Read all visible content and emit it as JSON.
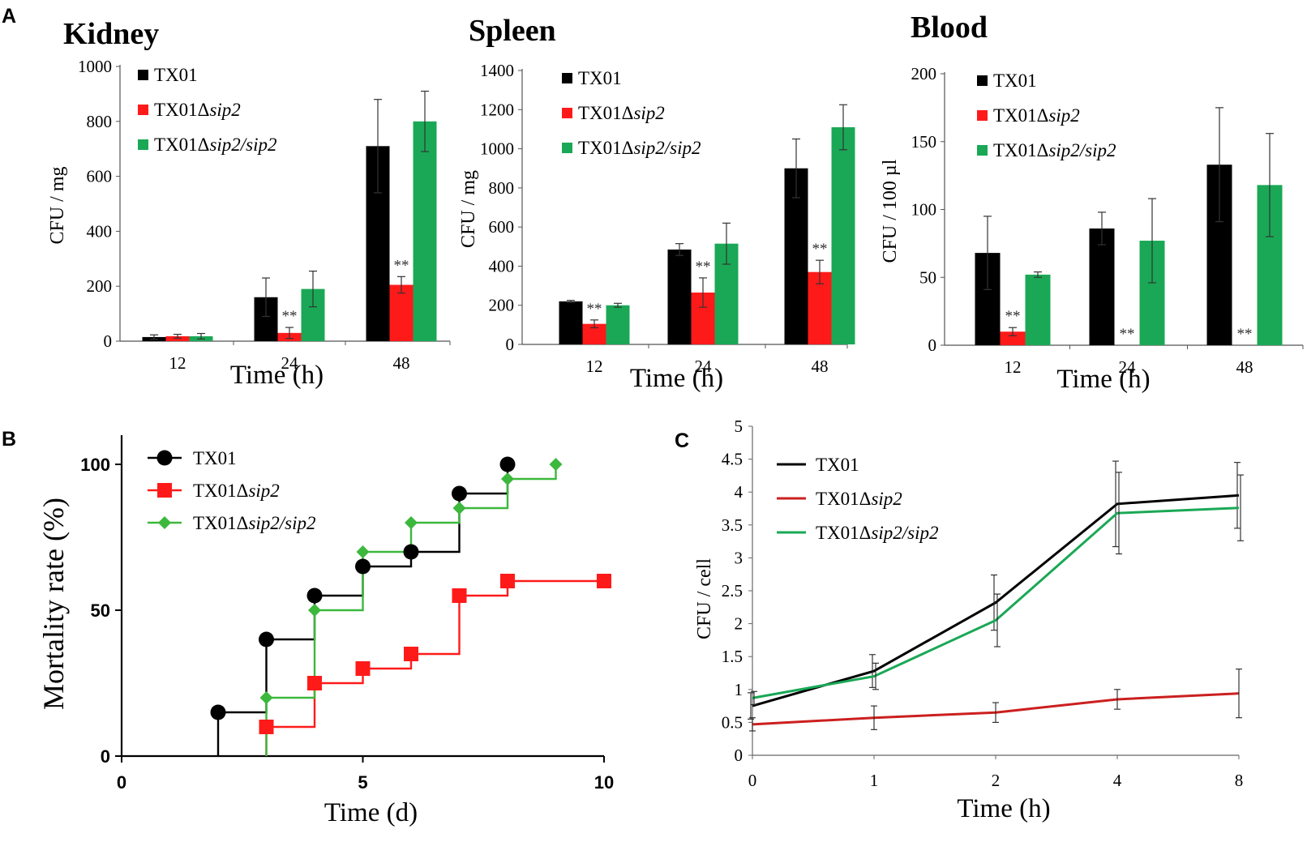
{
  "figure": {
    "panel_labels": [
      "A",
      "B",
      "C"
    ]
  },
  "colors": {
    "TX01": "#000000",
    "TX01Δsip2": "#ff1a1a",
    "TX01Δsip2/sip2": "#1aa856",
    "line_TX01": "#000000",
    "line_TX01Δsip2": "#cc1f1f",
    "line_TX01Δsip2/sip2": "#1aa856",
    "km_TX01Δsip2/sip2": "#3cb83c"
  },
  "chart_data": [
    {
      "id": "kidney",
      "type": "bar",
      "title": "Kidney",
      "xlabel": "Time (h)",
      "ylabel": "CFU / mg",
      "ylim": [
        0,
        1000
      ],
      "yticks": [
        0,
        200,
        400,
        600,
        800,
        1000
      ],
      "categories": [
        "12",
        "24",
        "48"
      ],
      "series": [
        {
          "name": "TX01",
          "prefix": "TX01",
          "suffix": "",
          "values": [
            15,
            160,
            710
          ],
          "errors": [
            8,
            70,
            170
          ]
        },
        {
          "name": "TX01Δsip2",
          "prefix": "TX01Δ",
          "suffix": "sip2",
          "values": [
            18,
            30,
            205
          ],
          "errors": [
            7,
            20,
            30
          ]
        },
        {
          "name": "TX01Δsip2/sip2",
          "prefix": "TX01Δ",
          "suffix": "sip2/sip2",
          "values": [
            18,
            190,
            800
          ],
          "errors": [
            10,
            65,
            110
          ]
        }
      ],
      "annotations": [
        "**",
        "**"
      ]
    },
    {
      "id": "spleen",
      "type": "bar",
      "title": "Spleen",
      "xlabel": "Time (h)",
      "ylabel": "CFU / mg",
      "ylim": [
        0,
        1400
      ],
      "yticks": [
        0,
        200,
        400,
        600,
        800,
        1000,
        1200,
        1400
      ],
      "categories": [
        "12",
        "24",
        "48"
      ],
      "series": [
        {
          "name": "TX01",
          "prefix": "TX01",
          "suffix": "",
          "values": [
            220,
            485,
            900
          ],
          "errors": [
            5,
            30,
            150
          ]
        },
        {
          "name": "TX01Δsip2",
          "prefix": "TX01Δ",
          "suffix": "sip2",
          "values": [
            105,
            265,
            370
          ],
          "errors": [
            20,
            75,
            60
          ]
        },
        {
          "name": "TX01Δsip2/sip2",
          "prefix": "TX01Δ",
          "suffix": "sip2/sip2",
          "values": [
            200,
            515,
            1110
          ],
          "errors": [
            10,
            105,
            115
          ]
        }
      ],
      "annotations": [
        "**",
        "**",
        "**"
      ]
    },
    {
      "id": "blood",
      "type": "bar",
      "title": "Blood",
      "xlabel": "Time (h)",
      "ylabel": "CFU / 100 µl",
      "ylim": [
        0,
        200
      ],
      "yticks": [
        0,
        50,
        100,
        150,
        200
      ],
      "categories": [
        "12",
        "24",
        "48"
      ],
      "series": [
        {
          "name": "TX01",
          "prefix": "TX01",
          "suffix": "",
          "values": [
            68,
            86,
            133
          ],
          "errors": [
            27,
            12,
            42
          ]
        },
        {
          "name": "TX01Δsip2",
          "prefix": "TX01Δ",
          "suffix": "sip2",
          "values": [
            10,
            0,
            0
          ],
          "errors": [
            3,
            0,
            0
          ]
        },
        {
          "name": "TX01Δsip2/sip2",
          "prefix": "TX01Δ",
          "suffix": "sip2/sip2",
          "values": [
            52,
            77,
            118
          ],
          "errors": [
            2,
            31,
            38
          ]
        }
      ],
      "annotations": [
        "**",
        "**",
        "**"
      ]
    },
    {
      "id": "mortality",
      "type": "line",
      "subtype": "step",
      "title": "",
      "xlabel": "Time (d)",
      "ylabel": "Mortality rate (%)",
      "xlim": [
        0,
        10
      ],
      "ylim": [
        0,
        110
      ],
      "xticks": [
        0,
        5,
        10
      ],
      "yticks": [
        0,
        50,
        100
      ],
      "series": [
        {
          "name": "TX01",
          "prefix": "TX01",
          "suffix": "",
          "marker": "circle",
          "x": [
            2,
            3,
            4,
            5,
            6,
            7,
            8
          ],
          "y": [
            15,
            40,
            55,
            65,
            70,
            90,
            100
          ]
        },
        {
          "name": "TX01Δsip2",
          "prefix": "TX01Δ",
          "suffix": "sip2",
          "marker": "square",
          "x": [
            3,
            4,
            5,
            6,
            7,
            8,
            10
          ],
          "y": [
            10,
            25,
            30,
            35,
            55,
            60,
            60
          ]
        },
        {
          "name": "TX01Δsip2/sip2",
          "prefix": "TX01Δ",
          "suffix": "sip2/sip2",
          "marker": "diamond",
          "x": [
            3,
            4,
            5,
            6,
            7,
            8,
            9
          ],
          "y": [
            20,
            50,
            70,
            80,
            85,
            95,
            100
          ]
        }
      ]
    },
    {
      "id": "intracellular",
      "type": "line",
      "title": "",
      "xlabel": "Time (h)",
      "ylabel": "CFU / cell",
      "categories": [
        "0",
        "1",
        "2",
        "4",
        "8"
      ],
      "ylim": [
        0,
        5
      ],
      "yticks": [
        "0",
        "0.5",
        "1",
        "1.5",
        "2",
        "2.5",
        "3",
        "3.5",
        "4",
        "4.5",
        "5"
      ],
      "series": [
        {
          "name": "TX01",
          "prefix": "TX01",
          "suffix": "",
          "values": [
            0.75,
            1.28,
            2.32,
            3.82,
            3.95
          ],
          "errors": [
            0.2,
            0.25,
            0.42,
            0.65,
            0.5
          ]
        },
        {
          "name": "TX01Δsip2",
          "prefix": "TX01Δ",
          "suffix": "sip2",
          "values": [
            0.47,
            0.57,
            0.65,
            0.85,
            0.94
          ],
          "errors": [
            0.1,
            0.18,
            0.15,
            0.15,
            0.37
          ]
        },
        {
          "name": "TX01Δsip2/sip2",
          "prefix": "TX01Δ",
          "suffix": "sip2/sip2",
          "values": [
            0.87,
            1.2,
            2.05,
            3.68,
            3.76
          ],
          "errors": [
            0.1,
            0.2,
            0.4,
            0.62,
            0.5
          ]
        }
      ]
    }
  ]
}
